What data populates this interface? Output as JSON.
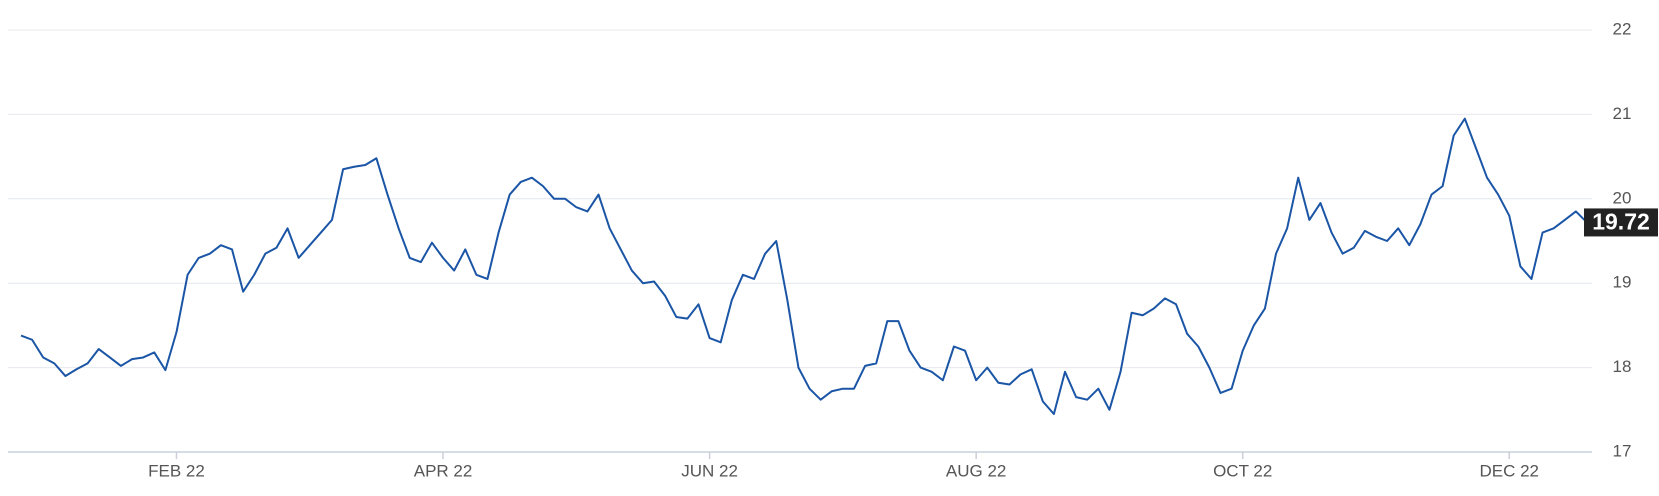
{
  "chart_data": {
    "type": "line",
    "color": "#1b55a6",
    "grid": true,
    "ylim": [
      17,
      22
    ],
    "yticks": [
      17,
      18,
      19,
      20,
      21,
      22
    ],
    "categories": [
      null,
      null,
      null,
      null,
      null,
      null,
      null,
      null,
      null,
      null,
      null,
      null,
      null,
      null,
      "FEB 22",
      null,
      null,
      null,
      null,
      null,
      null,
      null,
      null,
      null,
      null,
      null,
      null,
      null,
      null,
      null,
      null,
      null,
      null,
      null,
      null,
      null,
      null,
      null,
      "APR 22",
      null,
      null,
      null,
      null,
      null,
      null,
      null,
      null,
      null,
      null,
      null,
      null,
      null,
      null,
      null,
      null,
      null,
      null,
      null,
      null,
      null,
      null,
      null,
      "JUN 22",
      null,
      null,
      null,
      null,
      null,
      null,
      null,
      null,
      null,
      null,
      null,
      null,
      null,
      null,
      null,
      null,
      null,
      null,
      null,
      null,
      null,
      null,
      null,
      "AUG 22",
      null,
      null,
      null,
      null,
      null,
      null,
      null,
      null,
      null,
      null,
      null,
      null,
      null,
      null,
      null,
      null,
      null,
      null,
      null,
      null,
      null,
      null,
      null,
      "OCT 22",
      null,
      null,
      null,
      null,
      null,
      null,
      null,
      null,
      null,
      null,
      null,
      null,
      null,
      null,
      null,
      null,
      null,
      null,
      null,
      null,
      null,
      null,
      null,
      "DEC 22",
      null,
      null,
      null,
      null,
      null,
      null,
      null
    ],
    "values": [
      18.38,
      18.33,
      18.12,
      18.05,
      17.9,
      17.98,
      18.05,
      18.22,
      18.12,
      18.02,
      18.1,
      18.12,
      18.18,
      17.97,
      18.42,
      19.1,
      19.3,
      19.35,
      19.45,
      19.4,
      18.9,
      19.1,
      19.35,
      19.42,
      19.65,
      19.3,
      19.45,
      19.6,
      19.75,
      20.35,
      20.38,
      20.4,
      20.48,
      20.05,
      19.65,
      19.3,
      19.25,
      19.48,
      19.3,
      19.15,
      19.4,
      19.1,
      19.05,
      19.6,
      20.05,
      20.2,
      20.25,
      20.15,
      20.0,
      20.0,
      19.9,
      19.85,
      20.05,
      19.65,
      19.4,
      19.15,
      19.0,
      19.02,
      18.85,
      18.6,
      18.58,
      18.75,
      18.35,
      18.3,
      18.8,
      19.1,
      19.05,
      19.35,
      19.5,
      18.8,
      18.0,
      17.75,
      17.62,
      17.72,
      17.75,
      17.75,
      18.02,
      18.05,
      18.55,
      18.55,
      18.2,
      18.0,
      17.95,
      17.85,
      18.25,
      18.2,
      17.85,
      18.0,
      17.82,
      17.8,
      17.92,
      17.98,
      17.6,
      17.45,
      17.95,
      17.65,
      17.62,
      17.75,
      17.5,
      17.95,
      18.65,
      18.62,
      18.7,
      18.82,
      18.75,
      18.4,
      18.25,
      18.0,
      17.7,
      17.75,
      18.2,
      18.5,
      18.7,
      19.35,
      19.65,
      20.25,
      19.75,
      19.95,
      19.6,
      19.35,
      19.42,
      19.62,
      19.55,
      19.5,
      19.65,
      19.45,
      19.7,
      20.05,
      20.15,
      20.75,
      20.95,
      20.6,
      20.25,
      20.05,
      19.8,
      19.2,
      19.05,
      19.6,
      19.65,
      19.75,
      19.85,
      19.72
    ]
  }
}
